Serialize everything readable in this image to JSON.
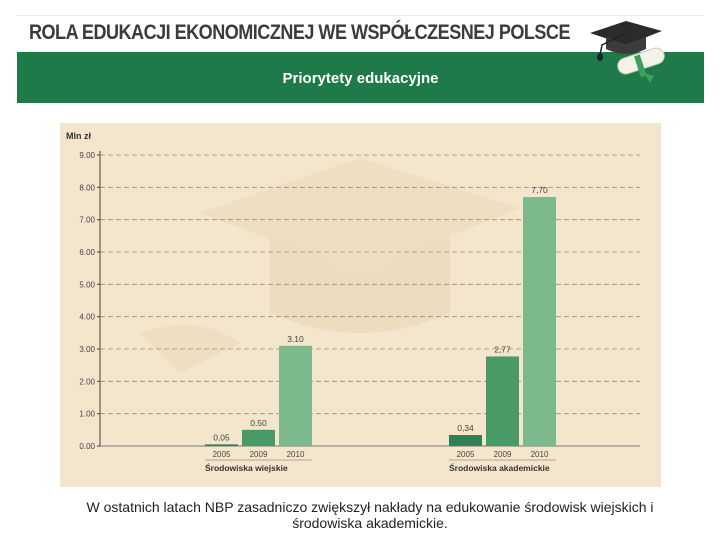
{
  "banner": {
    "title": "ROLA EDUKACJI EKONOMICZNEJ WE WSPÓŁCZESNEJ POLSCE",
    "subtitle": "Priorytety edukacyjne",
    "accent_color": "#1e7a48",
    "logo_icon": "graduation-cap-diploma-icon"
  },
  "chart_data": {
    "type": "bar",
    "ylabel": "Mln zł",
    "ylim": [
      0,
      9
    ],
    "yticks": [
      "0.00",
      "1.00",
      "2.00",
      "3.00",
      "4.00",
      "5.00",
      "6.00",
      "7.00",
      "8.00",
      "9.00"
    ],
    "grid": "dashed-horizontal",
    "groups": [
      {
        "name": "Środowiska wiejskie",
        "bars": [
          {
            "category": "2005",
            "value": 0.05,
            "label": "0,05"
          },
          {
            "category": "2009",
            "value": 0.5,
            "label": "0.50"
          },
          {
            "category": "2010",
            "value": 3.1,
            "label": "3.10"
          }
        ]
      },
      {
        "name": "Środowiska akademickie",
        "bars": [
          {
            "category": "2005",
            "value": 0.34,
            "label": "0,34"
          },
          {
            "category": "2009",
            "value": 2.77,
            "label": "2,77"
          },
          {
            "category": "2010",
            "value": 7.7,
            "label": "7,70"
          }
        ]
      }
    ],
    "colors": [
      "#2f8055",
      "#4a9a68",
      "#7cb98d"
    ]
  },
  "caption": "W ostatnich latach NBP zasadniczo zwiększył nakłady na edukowanie środowisk wiejskich i środowiska akademickie."
}
